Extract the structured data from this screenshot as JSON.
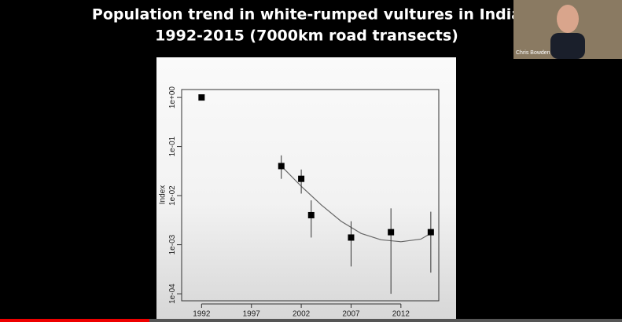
{
  "participant": "Chris Bowden",
  "chart_data": {
    "type": "scatter",
    "title": [
      "Population trend in white-rumped vultures in India",
      "1992-2015 (7000km road transects)"
    ],
    "y_label": "Index",
    "log_y": true,
    "x": [
      1992,
      2000,
      2002,
      2003,
      2007,
      2011,
      2015
    ],
    "series": [
      {
        "color": "#000000",
        "values": [
          1,
          0.04,
          0.022,
          0.004,
          0.0014,
          0.0018,
          0.0018
        ],
        "lower": [
          null,
          0.022,
          0.011,
          0.0014,
          0.00036,
          0.0001,
          0.00027
        ],
        "upper": [
          null,
          0.066,
          0.034,
          0.008,
          0.003,
          0.0055,
          0.0047
        ]
      }
    ],
    "trend": {
      "color": "#666666",
      "x": [
        2000,
        2002,
        2004,
        2006,
        2008,
        2010,
        2012,
        2014,
        2015
      ],
      "values": [
        0.04,
        0.0155,
        0.0065,
        0.003,
        0.0017,
        0.00126,
        0.00115,
        0.0013,
        0.0017
      ]
    },
    "xlim": [
      1990,
      2015.8
    ],
    "xticks": [
      1992,
      1997,
      2002,
      2007,
      2012
    ],
    "ylim": [
      7.2e-05,
      1.45
    ],
    "yticks": [
      {
        "value": 0.0001,
        "label": "1e-04"
      },
      {
        "value": 0.001,
        "label": "1e-03"
      },
      {
        "value": 0.01,
        "label": "1e-02"
      },
      {
        "value": 0.1,
        "label": "1e-01"
      },
      {
        "value": 1,
        "label": "1e+00"
      }
    ]
  }
}
